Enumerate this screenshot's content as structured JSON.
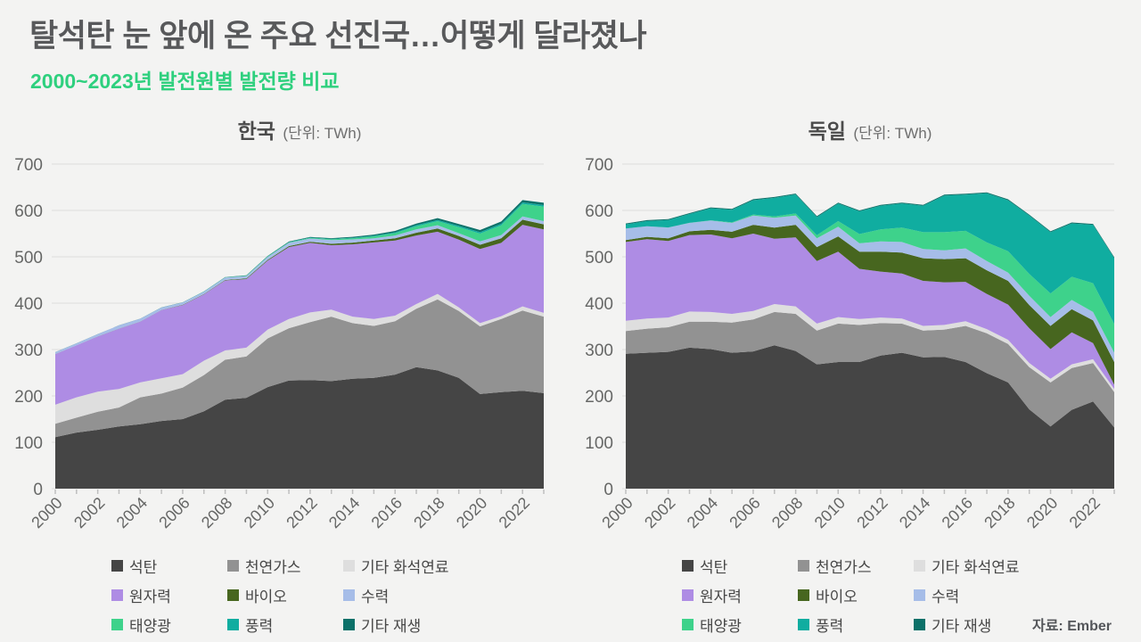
{
  "header": {
    "title": "탈석탄 눈 앞에 온 주요 선진국…어떻게 달라졌나",
    "subtitle": "2000~2023년 발전원별 발전량 비교"
  },
  "source": "자료: Ember",
  "colors": {
    "background": "#f3f3f2",
    "title": "#58595b",
    "subtitle": "#2ed07e",
    "grid": "#dcdcdc",
    "tick": "#bfbfbf",
    "axis_label": "#666766"
  },
  "chart_data": [
    {
      "type": "area",
      "stacked": true,
      "title": "한국",
      "unit_label": "(단위: TWh)",
      "ylim": [
        0,
        700
      ],
      "ytick_step": 100,
      "xtick_label_every": 2,
      "grid": true,
      "legend_position": "bottom",
      "x": [
        2000,
        2001,
        2002,
        2003,
        2004,
        2005,
        2006,
        2007,
        2008,
        2009,
        2010,
        2011,
        2012,
        2013,
        2014,
        2015,
        2016,
        2017,
        2018,
        2019,
        2020,
        2021,
        2022,
        2023
      ],
      "series": [
        {
          "name": "석탄",
          "color": "#454545",
          "values": [
            111,
            121,
            127,
            134,
            139,
            146,
            150,
            167,
            192,
            196,
            219,
            233,
            234,
            232,
            237,
            239,
            246,
            262,
            255,
            239,
            204,
            208,
            211,
            206
          ]
        },
        {
          "name": "천연가스",
          "color": "#929292",
          "values": [
            29,
            32,
            39,
            41,
            58,
            59,
            68,
            78,
            86,
            89,
            105,
            113,
            125,
            139,
            120,
            112,
            115,
            126,
            153,
            144,
            146,
            158,
            173,
            165
          ]
        },
        {
          "name": "기타 화석연료",
          "color": "#dedede",
          "values": [
            41,
            44,
            43,
            40,
            32,
            33,
            29,
            31,
            20,
            19,
            19,
            20,
            21,
            15,
            14,
            15,
            12,
            10,
            12,
            8,
            7,
            6,
            9,
            8
          ]
        },
        {
          "name": "원자력",
          "color": "#ae8ce4",
          "values": [
            109,
            112,
            119,
            130,
            131,
            147,
            149,
            143,
            151,
            148,
            149,
            155,
            150,
            139,
            156,
            165,
            162,
            148,
            134,
            146,
            160,
            158,
            176,
            180
          ]
        },
        {
          "name": "바이오",
          "color": "#47661f",
          "values": [
            0.2,
            0.2,
            0.2,
            0.2,
            0.3,
            0.4,
            0.5,
            0.7,
            1,
            1.2,
            1.5,
            2,
            2.5,
            3,
            3.5,
            4,
            5,
            6,
            7,
            8,
            9,
            10,
            11,
            11
          ]
        },
        {
          "name": "수력",
          "color": "#a6bde8",
          "values": [
            4,
            4,
            5,
            7,
            6,
            5,
            5,
            5,
            5,
            5,
            6,
            7,
            7,
            8,
            7,
            5,
            6,
            7,
            7,
            6,
            7,
            7,
            7,
            7
          ]
        },
        {
          "name": "태양광",
          "color": "#3ed28b",
          "values": [
            0,
            0,
            0,
            0,
            0,
            0,
            0,
            0.1,
            0.3,
            0.6,
            0.8,
            0.9,
            1.1,
            1.6,
            2.5,
            4,
            5,
            7,
            9,
            13,
            17,
            21,
            27,
            31
          ]
        },
        {
          "name": "풍력",
          "color": "#10ada0",
          "values": [
            0,
            0,
            0,
            0,
            0,
            0.1,
            0.2,
            0.4,
            0.4,
            0.7,
            0.8,
            0.9,
            0.9,
            1.1,
            1.1,
            1.3,
            1.7,
            2.2,
            2.5,
            2.7,
            3.1,
            3.1,
            3.3,
            3.5
          ]
        },
        {
          "name": "기타 재생",
          "color": "#0c7169",
          "values": [
            0.2,
            0.2,
            0.2,
            0.2,
            0.2,
            0.3,
            0.3,
            0.4,
            0.5,
            0.6,
            0.8,
            1,
            1.2,
            1.5,
            2,
            2.5,
            3,
            3.5,
            4,
            4,
            4.5,
            5,
            5,
            5
          ]
        }
      ]
    },
    {
      "type": "area",
      "stacked": true,
      "title": "독일",
      "unit_label": "(단위: TWh)",
      "ylim": [
        0,
        700
      ],
      "ytick_step": 100,
      "xtick_label_every": 2,
      "grid": true,
      "legend_position": "bottom",
      "x": [
        2000,
        2001,
        2002,
        2003,
        2004,
        2005,
        2006,
        2007,
        2008,
        2009,
        2010,
        2011,
        2012,
        2013,
        2014,
        2015,
        2016,
        2017,
        2018,
        2019,
        2020,
        2021,
        2022,
        2023
      ],
      "series": [
        {
          "name": "석탄",
          "color": "#454545",
          "values": [
            291,
            293,
            295,
            304,
            301,
            293,
            296,
            309,
            297,
            268,
            273,
            273,
            287,
            293,
            283,
            284,
            273,
            249,
            229,
            171,
            134,
            170,
            188,
            132
          ]
        },
        {
          "name": "천연가스",
          "color": "#929292",
          "values": [
            49,
            52,
            53,
            56,
            59,
            65,
            69,
            72,
            80,
            73,
            83,
            80,
            70,
            63,
            58,
            59,
            78,
            86,
            83,
            91,
            95,
            90,
            83,
            76
          ]
        },
        {
          "name": "기타 화석연료",
          "color": "#dedede",
          "values": [
            22,
            22,
            21,
            22,
            21,
            19,
            18,
            17,
            16,
            15,
            14,
            13,
            12,
            11,
            10,
            10,
            10,
            9,
            9,
            9,
            8,
            8,
            8,
            7
          ]
        },
        {
          "name": "원자력",
          "color": "#ae8ce4",
          "values": [
            170,
            171,
            165,
            165,
            167,
            163,
            167,
            141,
            149,
            135,
            141,
            108,
            99,
            97,
            97,
            92,
            85,
            76,
            76,
            75,
            64,
            69,
            35,
            9
          ]
        },
        {
          "name": "바이오",
          "color": "#47661f",
          "values": [
            4,
            5,
            6,
            8,
            10,
            14,
            19,
            24,
            27,
            30,
            33,
            37,
            43,
            45,
            49,
            50,
            51,
            51,
            51,
            50,
            50,
            50,
            49,
            49
          ]
        },
        {
          "name": "수력",
          "color": "#a6bde8",
          "values": [
            25,
            23,
            23,
            18,
            20,
            19,
            20,
            21,
            20,
            19,
            21,
            18,
            22,
            23,
            20,
            19,
            21,
            20,
            18,
            20,
            19,
            20,
            18,
            20
          ]
        },
        {
          "name": "태양광",
          "color": "#3ed28b",
          "values": [
            0,
            0,
            0.2,
            0.3,
            0.6,
            1.3,
            2.2,
            3.1,
            4.4,
            6.6,
            12,
            20,
            26,
            31,
            36,
            39,
            38,
            40,
            46,
            47,
            51,
            50,
            62,
            62
          ]
        },
        {
          "name": "풍력",
          "color": "#10ada0",
          "values": [
            9,
            11,
            16,
            19,
            26,
            27,
            31,
            40,
            41,
            39,
            38,
            49,
            51,
            52,
            57,
            79,
            78,
            106,
            110,
            126,
            132,
            115,
            126,
            142
          ]
        },
        {
          "name": "기타 재생",
          "color": "#0c7169",
          "values": [
            2,
            2,
            2,
            2,
            2,
            2,
            2,
            2,
            2,
            2,
            2,
            2,
            2,
            2,
            2,
            2,
            2,
            2,
            2,
            2,
            2,
            2,
            2,
            2
          ]
        }
      ]
    }
  ]
}
